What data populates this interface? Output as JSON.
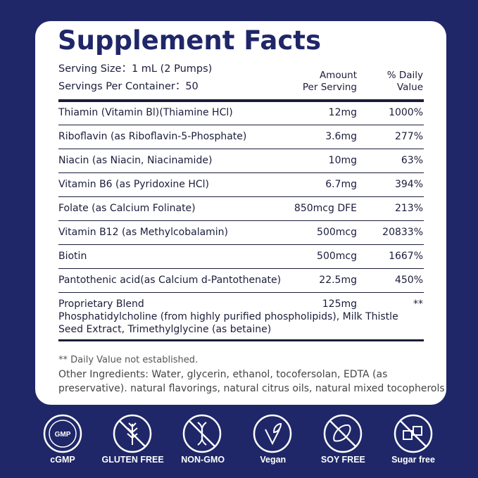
{
  "header": {
    "title": "Supplement Facts",
    "serving_size": "Serving Size：1 mL (2 Pumps)",
    "servings_per_container": "Servings Per Container：50",
    "amount_header": [
      "Amount",
      "Per Serving"
    ],
    "dv_header": [
      "% Daily",
      "Value"
    ]
  },
  "table": {
    "rows": [
      [
        "Thiamin (Vitamin Bl)(Thiamine HCl)",
        "12mg",
        "1000%"
      ],
      [
        "Riboflavin (as Riboflavin-5-Phosphate)",
        "3.6mg",
        "277%"
      ],
      [
        "Niacin (as Niacin, Niacinamide)",
        "10mg",
        "63%"
      ],
      [
        "Vitamin B6 (as Pyridoxine HCl)",
        "6.7mg",
        "394%"
      ],
      [
        "Folate (as Calcium Folinate)",
        "850mcg DFE",
        "213%"
      ],
      [
        "Vitamin B12 (as Methylcobalamin)",
        "500mcg",
        "20833%"
      ],
      [
        "Biotin",
        "500mcg",
        "1667%"
      ],
      [
        "Pantothenic acid(as Calcium d-Pantothenate)",
        "22.5mg",
        "450%"
      ]
    ],
    "blend": {
      "name": "Proprietary Blend",
      "amount": "125mg",
      "dv": "**",
      "description": [
        "Phosphatidylcholine (from highly purified phospholipids), Milk Thistle",
        "Seed Extract, Trimethylglycine (as betaine)"
      ]
    }
  },
  "footnote": "** Daily Value not established.",
  "other_ingredients": [
    "Other Ingredients: Water, glycerin, ethanol, tocofersolan, EDTA (as",
    "preservative). natural flavorings, natural citrus oils, natural mixed tocopherols"
  ],
  "badges": {
    "gmp_icon_text": "GMP",
    "labels": [
      "cGMP",
      "GLUTEN FREE",
      "NON-GMO",
      "Vegan",
      "SOY FREE",
      "Sugar free"
    ]
  }
}
